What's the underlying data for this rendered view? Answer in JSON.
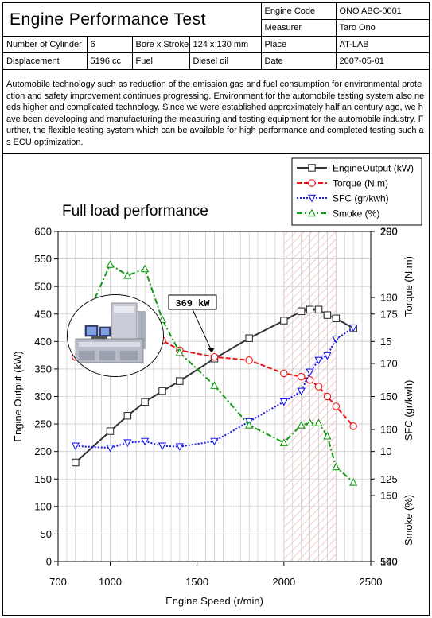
{
  "header": {
    "title": "Engine Performance Test",
    "engine_code_label": "Engine Code",
    "engine_code": "ONO ABC-0001",
    "measurer_label": "Measurer",
    "measurer": "Taro Ono",
    "cylinders_label": "Number of Cylinder",
    "cylinders": "6",
    "bore_stroke_label": "Bore x Stroke",
    "bore_stroke": "124 x 130 mm",
    "place_label": "Place",
    "place": "AT-LAB",
    "displacement_label": "Displacement",
    "displacement": "5196 cc",
    "fuel_label": "Fuel",
    "fuel": "Diesel oil",
    "date_label": "Date",
    "date": "2007-05-01"
  },
  "description": "Automobile technology such as reduction of the emission gas and fuel consumption for environmental protection and safety improvement continues progressing.  Environment for the automobile testing system also needs higher and complicated technology.  Since we were established approximately half an century ago, we have been developing and manufacturing the measuring and testing equipment for the automobile industry.  Further, the flexible testing system which can be available for  high performance and completed testing such as ECU optimization.",
  "chart_data": {
    "type": "line",
    "title": "Full load performance",
    "xlabel": "Engine Speed (r/min)",
    "xlim": [
      700,
      2500
    ],
    "xticks": [
      "700",
      "1000",
      "1500",
      "2000",
      "2500"
    ],
    "grid": true,
    "legend_position": "top-right",
    "annotation": {
      "label": "369 kW",
      "x": 1590,
      "y": 369
    },
    "highlight_range": [
      2000,
      2300
    ],
    "axes": {
      "left": {
        "label": "Engine Output (kW)",
        "min": 0,
        "max": 600,
        "ticks": [
          "0",
          "50",
          "100",
          "150",
          "200",
          "250",
          "300",
          "350",
          "400",
          "450",
          "500",
          "550",
          "600"
        ]
      },
      "right1": {
        "label": "Torque (N.m)",
        "min": 100,
        "max": 200,
        "ticks": [
          "100",
          "125",
          "150",
          "175",
          "200"
        ]
      },
      "right2": {
        "label": "SFC (gr/kwh)",
        "min": 140,
        "max": 190,
        "ticks": [
          "140",
          "150",
          "160",
          "170",
          "180",
          "190"
        ]
      },
      "right3": {
        "label": "Smoke (%)",
        "min": 5,
        "max": 20,
        "ticks": [
          "5",
          "10",
          "15",
          "20"
        ]
      }
    },
    "series": [
      {
        "name": "EngineOutput (kW)",
        "axis": "left",
        "color": "#333333",
        "marker": "square",
        "dash": "solid",
        "x": [
          800,
          1000,
          1100,
          1200,
          1300,
          1400,
          1600,
          1800,
          2000,
          2100,
          2150,
          2200,
          2250,
          2300,
          2400
        ],
        "y": [
          180,
          237,
          265,
          290,
          310,
          328,
          369,
          406,
          438,
          455,
          458,
          458,
          448,
          442,
          424
        ]
      },
      {
        "name": "Torque (N.m)",
        "axis": "right1",
        "color": "#ee1111",
        "marker": "circle",
        "dash": "dash",
        "x": [
          800,
          1000,
          1100,
          1200,
          1300,
          1400,
          1600,
          1800,
          2000,
          2100,
          2150,
          2200,
          2250,
          2300,
          2400
        ],
        "y": [
          162,
          166,
          168,
          168,
          167,
          164,
          162,
          161,
          157,
          156,
          155,
          153,
          150,
          147,
          141
        ]
      },
      {
        "name": "SFC (gr/kwh)",
        "axis": "right2",
        "color": "#1a1aee",
        "marker": "triangle-down",
        "dash": "dot",
        "x": [
          800,
          1000,
          1100,
          1200,
          1300,
          1400,
          1600,
          1800,
          2000,
          2100,
          2150,
          2200,
          2250,
          2300,
          2400
        ],
        "y": [
          157.5,
          157.2,
          158,
          158.2,
          157.5,
          157.4,
          158.2,
          161.2,
          164.2,
          165.8,
          168.7,
          170.5,
          171.2,
          173.7,
          175.4
        ]
      },
      {
        "name": "Smoke (%)",
        "axis": "right3",
        "color": "#119911",
        "marker": "triangle-up",
        "dash": "dashdot",
        "x": [
          800,
          1000,
          1100,
          1200,
          1300,
          1400,
          1600,
          1800,
          2000,
          2100,
          2150,
          2200,
          2250,
          2300,
          2400
        ],
        "y": [
          15,
          18.5,
          18,
          18.3,
          16,
          14.5,
          13,
          11.2,
          10.4,
          11.2,
          11.3,
          11.3,
          10.7,
          9.3,
          8.6
        ]
      }
    ]
  }
}
